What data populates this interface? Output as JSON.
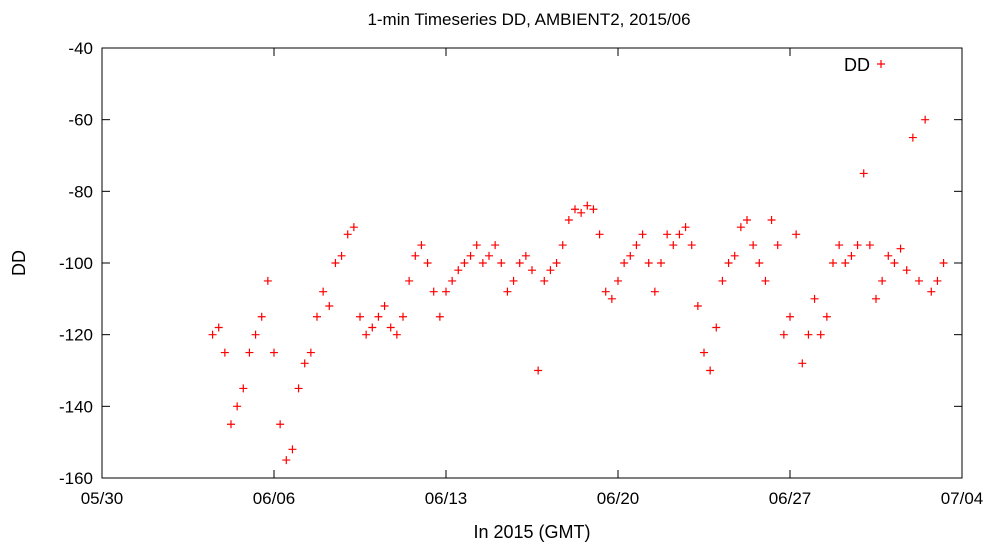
{
  "chart_data": {
    "type": "scatter",
    "title": "1-min Timeseries DD, AMBIENT2, 2015/06",
    "xlabel": "In 2015 (GMT)",
    "ylabel": "DD",
    "xlim": [
      "2015-05-30",
      "2015-07-04"
    ],
    "ylim": [
      -160,
      -40
    ],
    "xticks": [
      {
        "date": "2015-05-30",
        "label": "05/30"
      },
      {
        "date": "2015-06-06",
        "label": "06/06"
      },
      {
        "date": "2015-06-13",
        "label": "06/13"
      },
      {
        "date": "2015-06-20",
        "label": "06/20"
      },
      {
        "date": "2015-06-27",
        "label": "06/27"
      },
      {
        "date": "2015-07-04",
        "label": "07/04"
      }
    ],
    "yticks": [
      -40,
      -60,
      -80,
      -100,
      -120,
      -140,
      -160
    ],
    "grid": false,
    "legend": {
      "position": "top-right",
      "entries": [
        "DD"
      ]
    },
    "marker": "+",
    "series": [
      {
        "name": "DD",
        "color": "#ff0000",
        "points": [
          [
            "2015-06-03 12:00",
            -120
          ],
          [
            "2015-06-03 18:00",
            -118
          ],
          [
            "2015-06-04 00:00",
            -125
          ],
          [
            "2015-06-04 06:00",
            -145
          ],
          [
            "2015-06-04 12:00",
            -140
          ],
          [
            "2015-06-04 18:00",
            -135
          ],
          [
            "2015-06-05 00:00",
            -125
          ],
          [
            "2015-06-05 06:00",
            -120
          ],
          [
            "2015-06-05 12:00",
            -115
          ],
          [
            "2015-06-05 18:00",
            -105
          ],
          [
            "2015-06-06 00:00",
            -125
          ],
          [
            "2015-06-06 06:00",
            -145
          ],
          [
            "2015-06-06 12:00",
            -155
          ],
          [
            "2015-06-06 18:00",
            -152
          ],
          [
            "2015-06-07 00:00",
            -135
          ],
          [
            "2015-06-07 06:00",
            -128
          ],
          [
            "2015-06-07 12:00",
            -125
          ],
          [
            "2015-06-07 18:00",
            -115
          ],
          [
            "2015-06-08 00:00",
            -108
          ],
          [
            "2015-06-08 06:00",
            -112
          ],
          [
            "2015-06-08 12:00",
            -100
          ],
          [
            "2015-06-08 18:00",
            -98
          ],
          [
            "2015-06-09 00:00",
            -92
          ],
          [
            "2015-06-09 06:00",
            -90
          ],
          [
            "2015-06-09 12:00",
            -115
          ],
          [
            "2015-06-09 18:00",
            -120
          ],
          [
            "2015-06-10 00:00",
            -118
          ],
          [
            "2015-06-10 06:00",
            -115
          ],
          [
            "2015-06-10 12:00",
            -112
          ],
          [
            "2015-06-10 18:00",
            -118
          ],
          [
            "2015-06-11 00:00",
            -120
          ],
          [
            "2015-06-11 06:00",
            -115
          ],
          [
            "2015-06-11 12:00",
            -105
          ],
          [
            "2015-06-11 18:00",
            -98
          ],
          [
            "2015-06-12 00:00",
            -95
          ],
          [
            "2015-06-12 06:00",
            -100
          ],
          [
            "2015-06-12 12:00",
            -108
          ],
          [
            "2015-06-12 18:00",
            -115
          ],
          [
            "2015-06-13 00:00",
            -108
          ],
          [
            "2015-06-13 06:00",
            -105
          ],
          [
            "2015-06-13 12:00",
            -102
          ],
          [
            "2015-06-13 18:00",
            -100
          ],
          [
            "2015-06-14 00:00",
            -98
          ],
          [
            "2015-06-14 06:00",
            -95
          ],
          [
            "2015-06-14 12:00",
            -100
          ],
          [
            "2015-06-14 18:00",
            -98
          ],
          [
            "2015-06-15 00:00",
            -95
          ],
          [
            "2015-06-15 06:00",
            -100
          ],
          [
            "2015-06-15 12:00",
            -108
          ],
          [
            "2015-06-15 18:00",
            -105
          ],
          [
            "2015-06-16 00:00",
            -100
          ],
          [
            "2015-06-16 06:00",
            -98
          ],
          [
            "2015-06-16 12:00",
            -102
          ],
          [
            "2015-06-16 18:00",
            -130
          ],
          [
            "2015-06-17 00:00",
            -105
          ],
          [
            "2015-06-17 06:00",
            -102
          ],
          [
            "2015-06-17 12:00",
            -100
          ],
          [
            "2015-06-17 18:00",
            -95
          ],
          [
            "2015-06-18 00:00",
            -88
          ],
          [
            "2015-06-18 06:00",
            -85
          ],
          [
            "2015-06-18 12:00",
            -86
          ],
          [
            "2015-06-18 18:00",
            -84
          ],
          [
            "2015-06-19 00:00",
            -85
          ],
          [
            "2015-06-19 06:00",
            -92
          ],
          [
            "2015-06-19 12:00",
            -108
          ],
          [
            "2015-06-19 18:00",
            -110
          ],
          [
            "2015-06-20 00:00",
            -105
          ],
          [
            "2015-06-20 06:00",
            -100
          ],
          [
            "2015-06-20 12:00",
            -98
          ],
          [
            "2015-06-20 18:00",
            -95
          ],
          [
            "2015-06-21 00:00",
            -92
          ],
          [
            "2015-06-21 06:00",
            -100
          ],
          [
            "2015-06-21 12:00",
            -108
          ],
          [
            "2015-06-21 18:00",
            -100
          ],
          [
            "2015-06-22 00:00",
            -92
          ],
          [
            "2015-06-22 06:00",
            -95
          ],
          [
            "2015-06-22 12:00",
            -92
          ],
          [
            "2015-06-22 18:00",
            -90
          ],
          [
            "2015-06-23 00:00",
            -95
          ],
          [
            "2015-06-23 06:00",
            -112
          ],
          [
            "2015-06-23 12:00",
            -125
          ],
          [
            "2015-06-23 18:00",
            -130
          ],
          [
            "2015-06-24 00:00",
            -118
          ],
          [
            "2015-06-24 06:00",
            -105
          ],
          [
            "2015-06-24 12:00",
            -100
          ],
          [
            "2015-06-24 18:00",
            -98
          ],
          [
            "2015-06-25 00:00",
            -90
          ],
          [
            "2015-06-25 06:00",
            -88
          ],
          [
            "2015-06-25 12:00",
            -95
          ],
          [
            "2015-06-25 18:00",
            -100
          ],
          [
            "2015-06-26 00:00",
            -105
          ],
          [
            "2015-06-26 06:00",
            -88
          ],
          [
            "2015-06-26 12:00",
            -95
          ],
          [
            "2015-06-26 18:00",
            -120
          ],
          [
            "2015-06-27 00:00",
            -115
          ],
          [
            "2015-06-27 06:00",
            -92
          ],
          [
            "2015-06-27 12:00",
            -128
          ],
          [
            "2015-06-27 18:00",
            -120
          ],
          [
            "2015-06-28 00:00",
            -110
          ],
          [
            "2015-06-28 06:00",
            -120
          ],
          [
            "2015-06-28 12:00",
            -115
          ],
          [
            "2015-06-28 18:00",
            -100
          ],
          [
            "2015-06-29 00:00",
            -95
          ],
          [
            "2015-06-29 06:00",
            -100
          ],
          [
            "2015-06-29 12:00",
            -98
          ],
          [
            "2015-06-29 18:00",
            -95
          ],
          [
            "2015-06-30 00:00",
            -75
          ],
          [
            "2015-06-30 06:00",
            -95
          ],
          [
            "2015-06-30 12:00",
            -110
          ],
          [
            "2015-06-30 18:00",
            -105
          ],
          [
            "2015-07-01 00:00",
            -98
          ],
          [
            "2015-07-01 06:00",
            -100
          ],
          [
            "2015-07-01 12:00",
            -96
          ],
          [
            "2015-07-01 18:00",
            -102
          ],
          [
            "2015-07-02 00:00",
            -65
          ],
          [
            "2015-07-02 06:00",
            -105
          ],
          [
            "2015-07-02 12:00",
            -60
          ],
          [
            "2015-07-02 18:00",
            -108
          ],
          [
            "2015-07-03 00:00",
            -105
          ],
          [
            "2015-07-03 06:00",
            -100
          ]
        ]
      }
    ]
  }
}
